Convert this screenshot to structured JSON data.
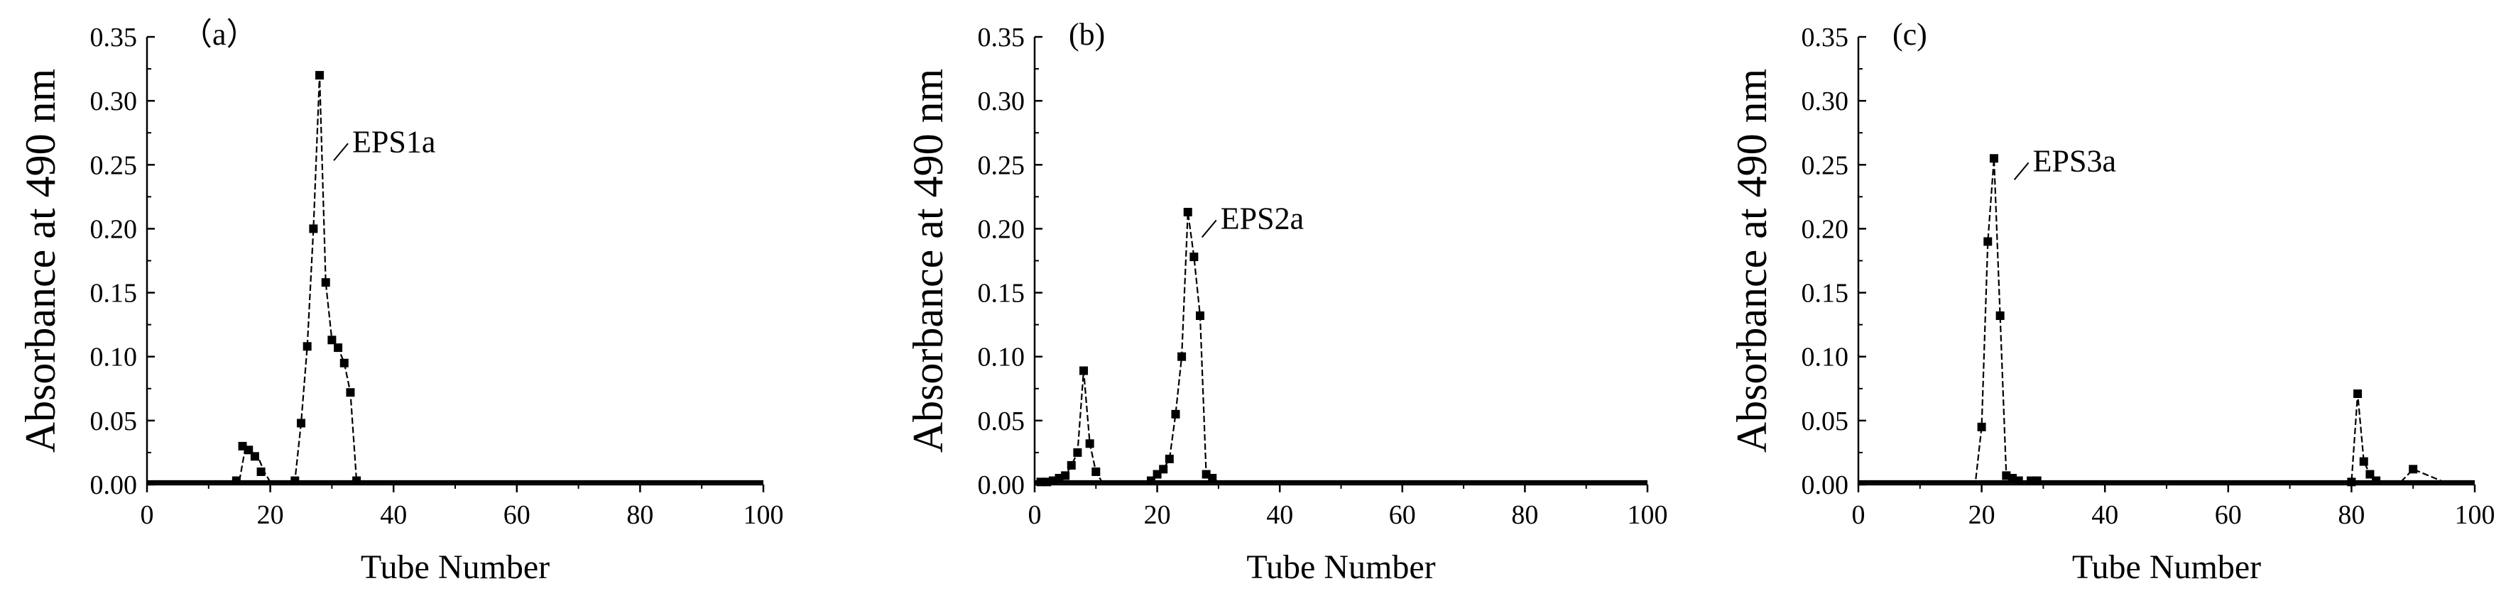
{
  "chart_data": [
    {
      "type": "line",
      "panel_label": "（a）",
      "xlabel": "Tube Number",
      "ylabel": "Absorbance at 490 nm",
      "xlim": [
        0,
        100
      ],
      "ylim": [
        0,
        0.35
      ],
      "x_ticks": [
        "0",
        "20",
        "40",
        "60",
        "80",
        "100"
      ],
      "y_ticks": [
        "0.00",
        "0.05",
        "0.10",
        "0.15",
        "0.20",
        "0.25",
        "0.30",
        "0.35"
      ],
      "annotation": {
        "text": "EPS1a",
        "x": 28,
        "y": 0.32
      },
      "x": [
        0,
        2,
        4,
        6,
        8,
        10,
        12,
        14,
        15,
        16,
        17,
        18,
        19,
        20,
        22,
        24,
        25,
        26,
        27,
        28,
        29,
        30,
        31,
        32,
        33,
        34,
        36,
        40,
        50,
        60,
        70,
        80,
        90,
        100
      ],
      "y": [
        0.002,
        0.002,
        0.002,
        0.002,
        0.002,
        0.002,
        0.002,
        0.002,
        0.003,
        0.03,
        0.027,
        0.022,
        0.01,
        0.002,
        0.002,
        0.003,
        0.048,
        0.108,
        0.2,
        0.32,
        0.158,
        0.113,
        0.107,
        0.095,
        0.072,
        0.003,
        0.002,
        0.002,
        0.002,
        0.002,
        0.002,
        0.002,
        0.002,
        0.002
      ],
      "markers_x": [
        14.5,
        15.5,
        16.5,
        17.5,
        18.5,
        24,
        25,
        26,
        27,
        28,
        29,
        30,
        31,
        32,
        33,
        34
      ],
      "markers_y": [
        0.003,
        0.03,
        0.027,
        0.022,
        0.01,
        0.003,
        0.048,
        0.108,
        0.2,
        0.32,
        0.158,
        0.113,
        0.107,
        0.095,
        0.072,
        0.003
      ]
    },
    {
      "type": "line",
      "panel_label": "(b)",
      "xlabel": "Tube Number",
      "ylabel": "Absorbance at 490 nm",
      "xlim": [
        0,
        100
      ],
      "ylim": [
        0,
        0.35
      ],
      "x_ticks": [
        "0",
        "20",
        "40",
        "60",
        "80",
        "100"
      ],
      "y_ticks": [
        "0.00",
        "0.05",
        "0.10",
        "0.15",
        "0.20",
        "0.25",
        "0.30",
        "0.35"
      ],
      "annotation": {
        "text": "EPS2a",
        "x": 25,
        "y": 0.213
      },
      "x": [
        0,
        1,
        2,
        3,
        4,
        5,
        6,
        7,
        8,
        9,
        10,
        11,
        14,
        17,
        19,
        20,
        21,
        22,
        23,
        24,
        25,
        26,
        27,
        28,
        29,
        30,
        32,
        40,
        50,
        60,
        70,
        80,
        90,
        100
      ],
      "y": [
        0.002,
        0.002,
        0.002,
        0.003,
        0.005,
        0.007,
        0.015,
        0.025,
        0.089,
        0.032,
        0.01,
        0.002,
        0.002,
        0.002,
        0.003,
        0.008,
        0.012,
        0.02,
        0.055,
        0.1,
        0.213,
        0.178,
        0.132,
        0.008,
        0.005,
        0.002,
        0.002,
        0.002,
        0.002,
        0.002,
        0.002,
        0.002,
        0.002,
        0.002
      ],
      "markers_x": [
        1,
        2,
        3,
        4,
        5,
        6,
        7,
        8,
        9,
        10,
        19,
        20,
        21,
        22,
        23,
        24,
        25,
        26,
        27,
        28,
        29
      ],
      "markers_y": [
        0.002,
        0.002,
        0.003,
        0.005,
        0.007,
        0.015,
        0.025,
        0.089,
        0.032,
        0.01,
        0.003,
        0.008,
        0.012,
        0.02,
        0.055,
        0.1,
        0.213,
        0.178,
        0.132,
        0.008,
        0.005
      ]
    },
    {
      "type": "line",
      "panel_label": "(c)",
      "xlabel": "Tube Number",
      "ylabel": "Absorbance at 490 nm",
      "xlim": [
        0,
        100
      ],
      "ylim": [
        0,
        0.35
      ],
      "x_ticks": [
        "0",
        "20",
        "40",
        "60",
        "80",
        "100"
      ],
      "y_ticks": [
        "0.00",
        "0.05",
        "0.10",
        "0.15",
        "0.20",
        "0.25",
        "0.30",
        "0.35"
      ],
      "annotation": {
        "text": "EPS3a",
        "x": 23,
        "y": 0.255
      },
      "x": [
        0,
        5,
        10,
        15,
        19,
        20,
        21,
        22,
        23,
        24,
        25,
        26,
        27,
        28,
        29,
        30,
        35,
        40,
        50,
        60,
        70,
        78,
        80,
        81,
        82,
        83,
        84,
        85,
        88,
        90,
        95,
        100
      ],
      "y": [
        0.002,
        0.002,
        0.002,
        0.002,
        0.002,
        0.045,
        0.19,
        0.255,
        0.132,
        0.007,
        0.005,
        0.003,
        0.002,
        0.003,
        0.003,
        0.002,
        0.002,
        0.002,
        0.002,
        0.002,
        0.002,
        0.002,
        0.002,
        0.071,
        0.018,
        0.008,
        0.003,
        0.002,
        0.002,
        0.012,
        0.002,
        0.002
      ],
      "markers_x": [
        20,
        21,
        22,
        23,
        24,
        25,
        26,
        28,
        29,
        80,
        81,
        82,
        83,
        84,
        90
      ],
      "markers_y": [
        0.045,
        0.19,
        0.255,
        0.132,
        0.007,
        0.005,
        0.003,
        0.003,
        0.003,
        0.002,
        0.071,
        0.018,
        0.008,
        0.003,
        0.012
      ]
    }
  ]
}
